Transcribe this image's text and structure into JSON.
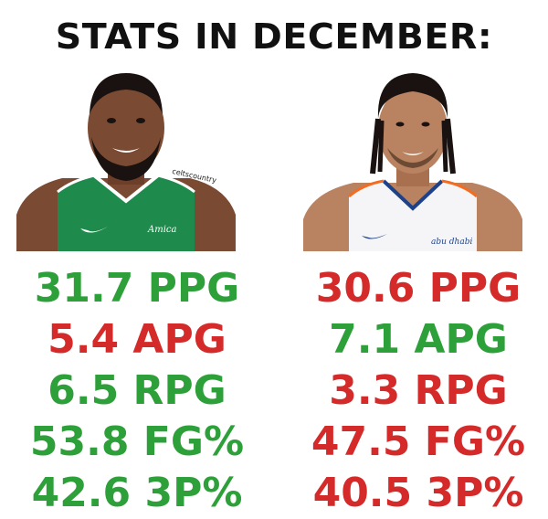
{
  "title": "STATS IN DECEMBER:",
  "left_player": {
    "jersey_color": "#1e8a4c",
    "watermark": "celtscountry",
    "sponsor": "Amica",
    "stats": [
      {
        "text": "31.7 PPG",
        "color": "#2ea03a"
      },
      {
        "text": "5.4 APG",
        "color": "#d42a2a"
      },
      {
        "text": "6.5 RPG",
        "color": "#2ea03a"
      },
      {
        "text": "53.8 FG%",
        "color": "#2ea03a"
      },
      {
        "text": "42.6 3P%",
        "color": "#2ea03a"
      }
    ]
  },
  "right_player": {
    "jersey_color": "#f5f5f7",
    "trim_color": "#f26d21",
    "sponsor": "abu dhabi",
    "stats": [
      {
        "text": "30.6 PPG",
        "color": "#d42a2a"
      },
      {
        "text": "7.1 APG",
        "color": "#2ea03a"
      },
      {
        "text": "3.3 RPG",
        "color": "#d42a2a"
      },
      {
        "text": "47.5 FG%",
        "color": "#d42a2a"
      },
      {
        "text": "40.5 3P%",
        "color": "#d42a2a"
      }
    ]
  }
}
